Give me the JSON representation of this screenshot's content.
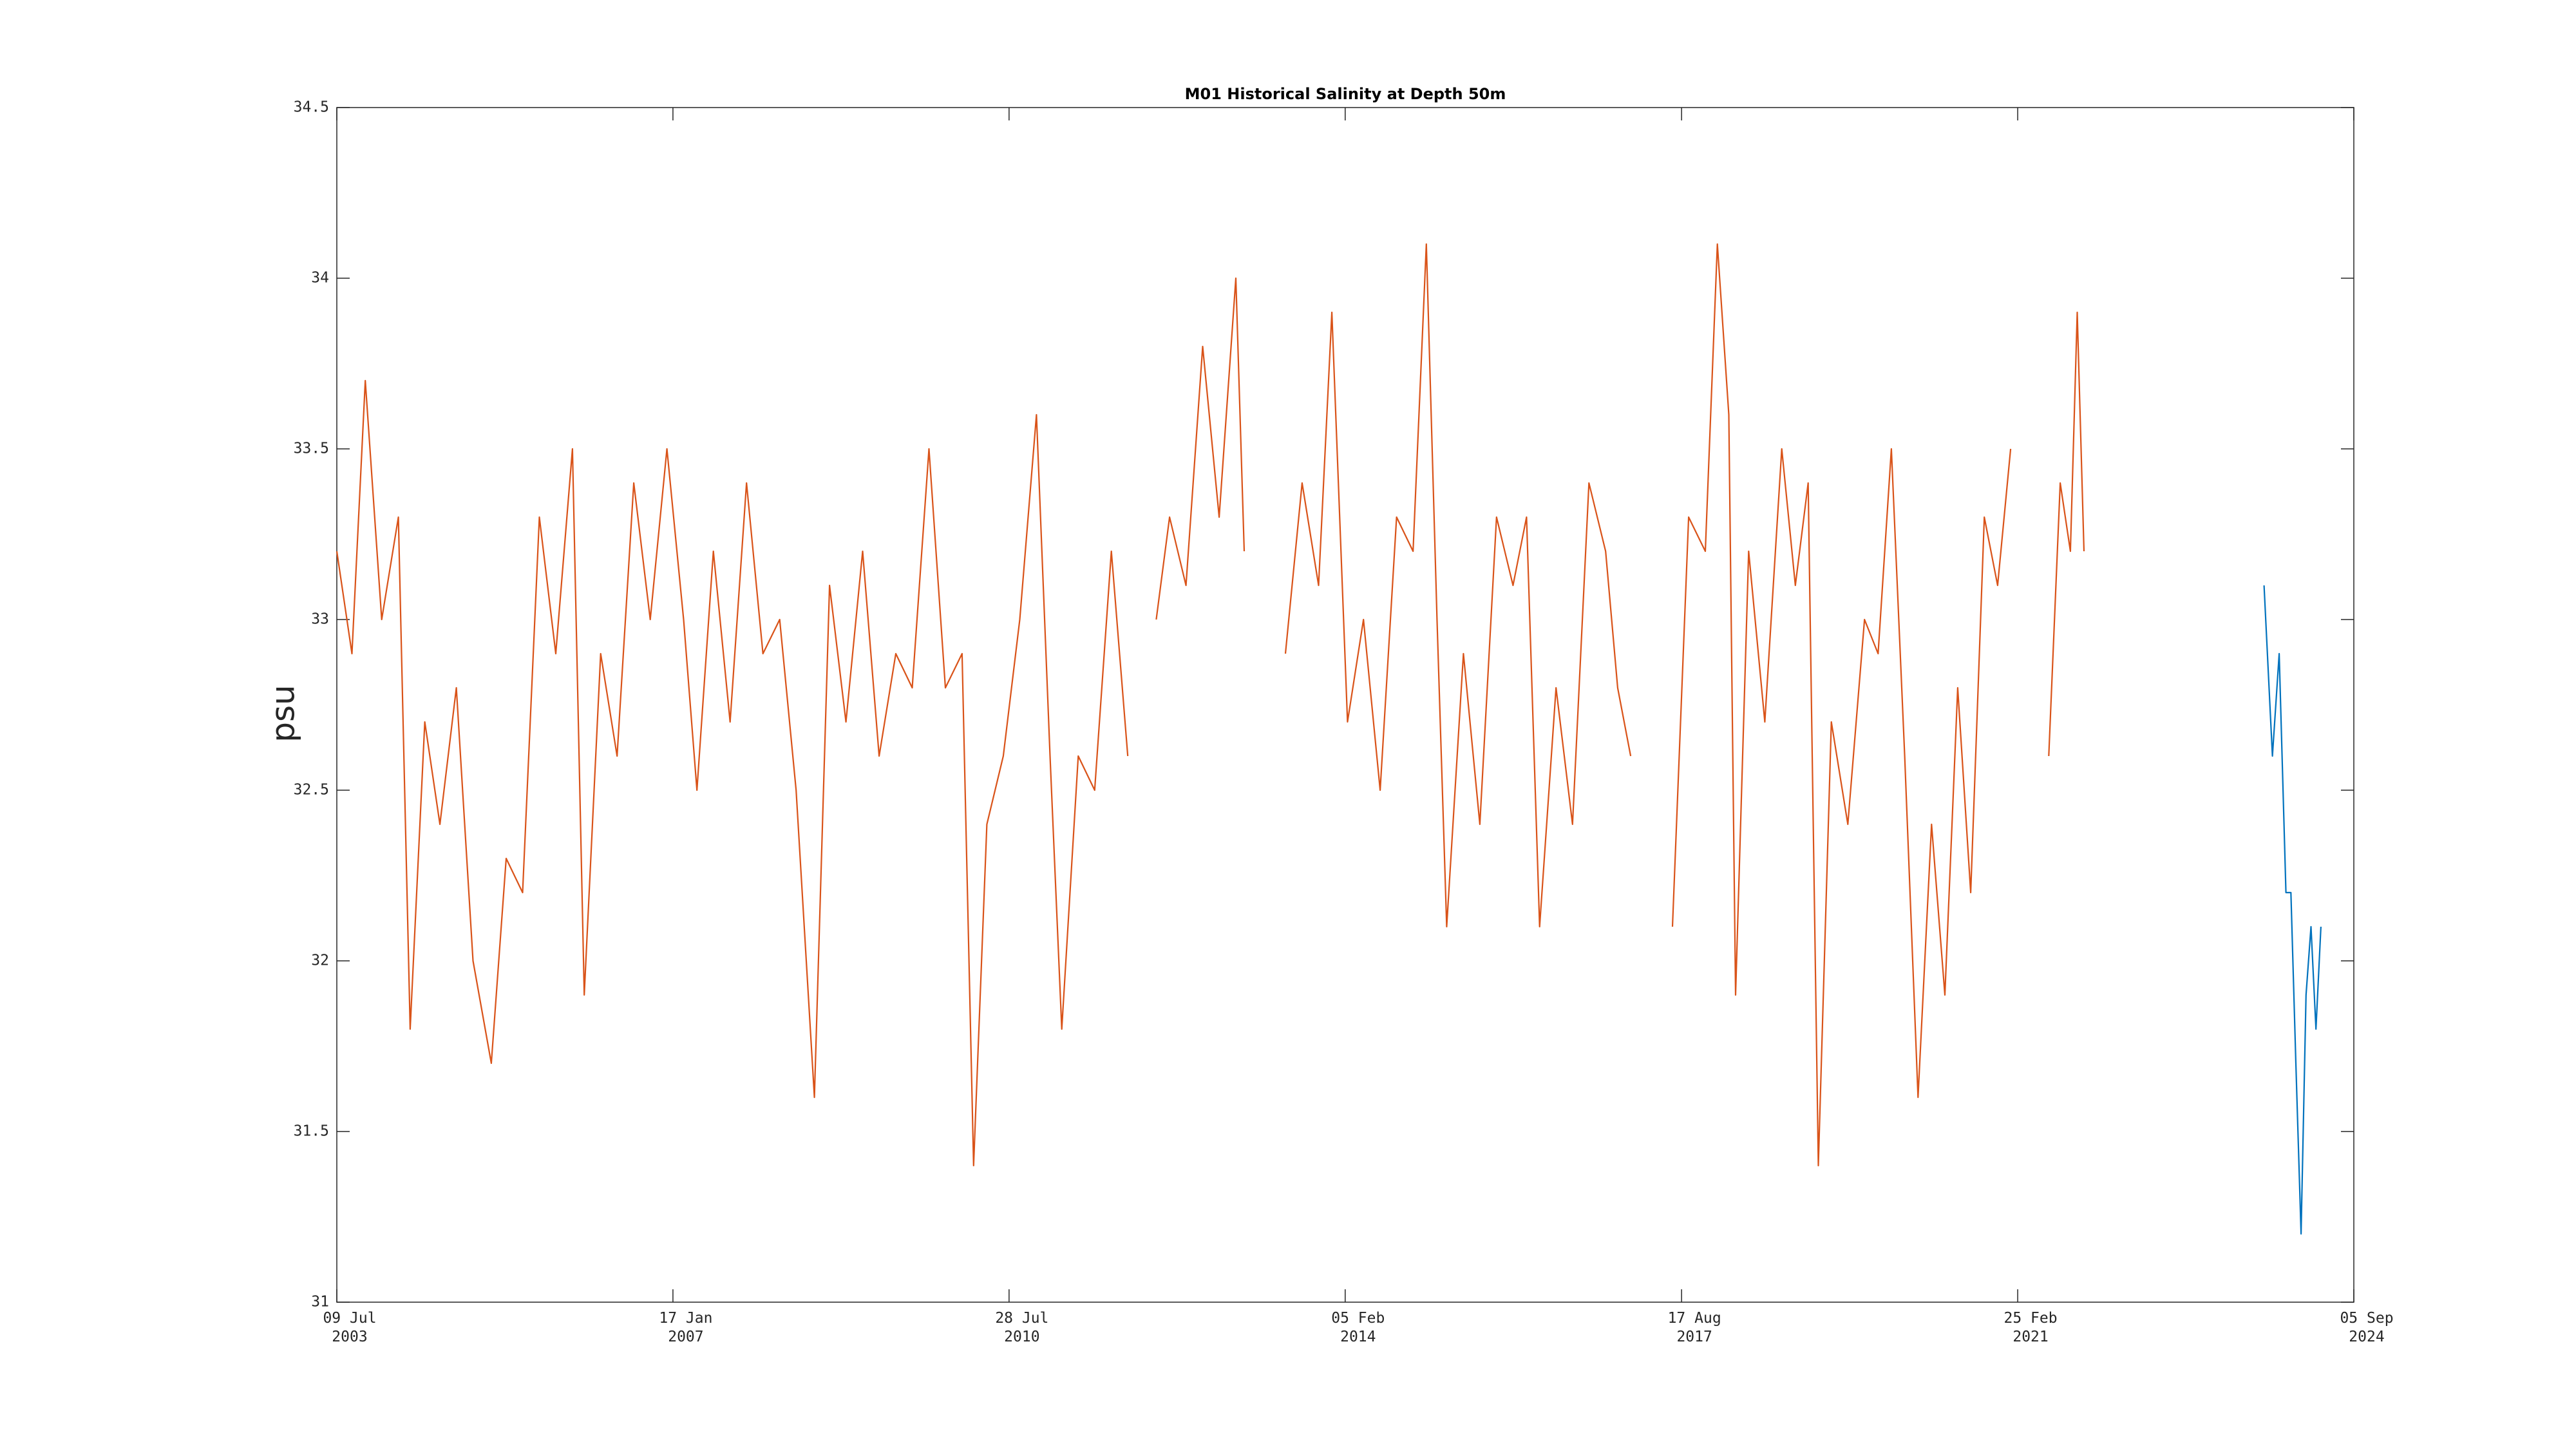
{
  "chart_data": {
    "type": "line",
    "title": "M01 Historical Salinity at Depth 50m",
    "y_label": "psu",
    "xlim": [
      "2003-07-09",
      "2024-09-05"
    ],
    "xticks": [
      {
        "value": "2003-07-09",
        "label": "09 Jul\n2003"
      },
      {
        "value": "2007-01-17",
        "label": "17 Jan\n2007"
      },
      {
        "value": "2010-07-28",
        "label": "28 Jul\n2010"
      },
      {
        "value": "2014-02-05",
        "label": "05 Feb\n2014"
      },
      {
        "value": "2017-08-17",
        "label": "17 Aug\n2017"
      },
      {
        "value": "2021-02-25",
        "label": "25 Feb\n2021"
      },
      {
        "value": "2024-09-05",
        "label": "05 Sep\n2024"
      }
    ],
    "ylim": [
      31,
      34.5
    ],
    "yticks": [
      31,
      31.5,
      32,
      32.5,
      33,
      33.5,
      34,
      34.5
    ],
    "grid": false,
    "series": [
      {
        "color": "#D95319",
        "x": [
          "2003-07-09",
          "2003-09-05",
          "2003-10-26",
          "2003-12-28",
          "2004-03-01",
          "2004-04-15",
          "2004-06-10",
          "2004-08-07",
          "2004-10-09",
          "2004-12-12",
          "2005-02-20",
          "2005-04-18",
          "2005-06-20",
          "2005-08-23",
          "2005-10-25",
          "2005-12-28",
          "2006-02-11",
          "2006-04-15",
          "2006-06-17",
          "2006-08-20",
          "2006-10-22",
          "2006-12-25",
          "2007-02-27",
          "2007-04-19",
          "2007-06-21",
          "2007-08-24",
          "2007-10-26",
          "2007-12-28",
          "2008-03-01",
          "2008-05-03",
          "2008-07-12",
          "2008-09-08",
          "2008-11-10",
          "2009-01-13",
          "2009-03-17",
          "2009-05-20",
          "2009-07-22",
          "2009-09-24",
          "2009-11-26",
          "2010-01-29",
          "2010-03-14",
          "2010-05-04",
          "2010-07-06",
          "2010-09-07",
          "2010-11-10",
          "2011-01-01",
          "2011-02-15",
          "2011-04-19",
          "2011-06-21",
          "2011-08-24",
          "2011-10-26",
          "2011-11-28",
          "2012-02-12",
          "2012-04-03",
          "2012-06-05",
          "2012-08-08",
          "2012-10-10",
          "2012-12-13",
          "2013-01-14",
          "2013-03-18",
          "2013-06-21",
          "2013-08-24",
          "2013-10-26",
          "2013-12-16",
          "2014-02-14",
          "2014-04-16",
          "2014-06-19",
          "2014-08-21",
          "2014-10-23",
          "2014-12-13",
          "2015-01-23",
          "2015-03-01",
          "2015-05-04",
          "2015-07-06",
          "2015-09-08",
          "2015-11-10",
          "2016-01-01",
          "2016-02-20",
          "2016-04-23",
          "2016-06-25",
          "2016-08-27",
          "2016-10-30",
          "2016-12-15",
          "2017-02-03",
          "2017-03-20",
          "2017-07-13",
          "2017-09-13",
          "2017-11-16",
          "2018-01-01",
          "2018-02-14",
          "2018-03-12",
          "2018-05-01",
          "2018-07-02",
          "2018-09-05",
          "2018-10-27",
          "2018-12-15",
          "2019-01-23",
          "2019-03-14",
          "2019-05-16",
          "2019-07-19",
          "2019-09-09",
          "2019-10-30",
          "2019-12-20",
          "2020-02-09",
          "2020-04-01",
          "2020-05-22",
          "2020-07-10",
          "2020-08-29",
          "2020-10-20",
          "2020-12-10",
          "2021-01-29",
          "2021-02-23",
          "2021-06-24",
          "2021-08-07",
          "2021-09-15",
          "2021-10-11",
          "2021-11-06"
        ],
        "values": [
          33.2,
          32.9,
          33.7,
          33.0,
          33.3,
          31.8,
          32.7,
          32.4,
          32.8,
          32.0,
          31.7,
          32.3,
          32.2,
          33.3,
          32.9,
          33.5,
          31.9,
          32.9,
          32.6,
          33.4,
          33.0,
          33.5,
          33.0,
          32.5,
          33.2,
          32.7,
          33.4,
          32.9,
          33.0,
          32.5,
          31.6,
          33.1,
          32.7,
          33.2,
          32.6,
          32.9,
          32.8,
          33.5,
          32.8,
          32.9,
          31.4,
          32.4,
          32.6,
          33.0,
          33.6,
          32.6,
          31.8,
          32.6,
          32.5,
          33.2,
          32.6,
          null,
          33.0,
          33.3,
          33.1,
          33.8,
          33.3,
          34.0,
          33.2,
          null,
          32.9,
          33.4,
          33.1,
          33.9,
          32.7,
          33.0,
          32.5,
          33.3,
          33.2,
          34.1,
          33.0,
          32.1,
          32.9,
          32.4,
          33.3,
          33.1,
          33.3,
          32.1,
          32.8,
          32.4,
          33.4,
          33.2,
          32.8,
          32.6,
          null,
          32.1,
          33.3,
          33.2,
          34.1,
          33.6,
          31.9,
          33.2,
          32.7,
          33.5,
          33.1,
          33.4,
          31.4,
          32.7,
          32.4,
          33.0,
          32.9,
          33.5,
          32.6,
          31.6,
          32.4,
          31.9,
          32.8,
          32.2,
          33.3,
          33.1,
          33.5,
          null,
          32.6,
          33.4,
          33.2,
          33.9,
          33.2
        ]
      },
      {
        "color": "#0072BD",
        "x": [
          "2023-09-27",
          "2023-10-29",
          "2023-11-24",
          "2023-12-20",
          "2024-01-08",
          "2024-01-27",
          "2024-02-16",
          "2024-03-06",
          "2024-03-25",
          "2024-04-13",
          "2024-05-02"
        ],
        "values": [
          33.1,
          32.6,
          32.9,
          32.2,
          32.2,
          31.7,
          31.2,
          31.9,
          32.1,
          31.8,
          32.1
        ]
      }
    ]
  }
}
